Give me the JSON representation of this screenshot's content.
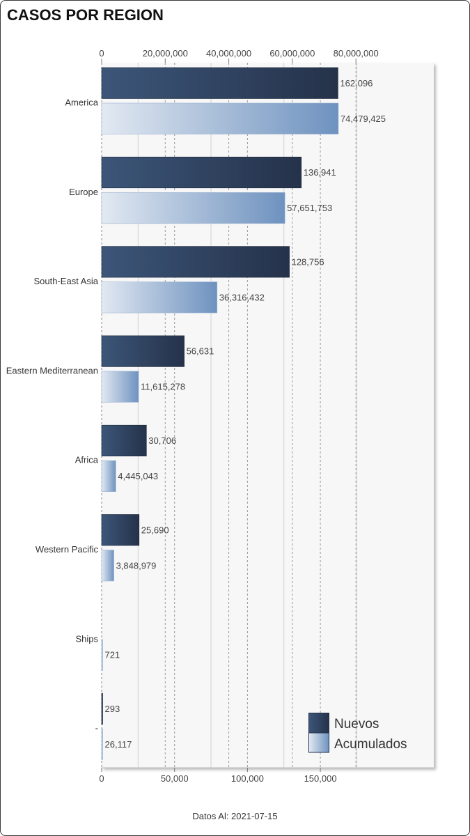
{
  "footer": {
    "text": "Datos Al: 2021-07-15"
  },
  "chart_data": {
    "type": "bar",
    "orientation": "horizontal",
    "title": "CASOS POR REGION",
    "categories": [
      "America",
      "Europe",
      "South-East Asia",
      "Eastern Mediterranean",
      "Africa",
      "Western Pacific",
      "Ships",
      "-"
    ],
    "series": [
      {
        "name": "Nuevos",
        "axis": "bottom",
        "values": [
          162096,
          136941,
          128756,
          56631,
          30706,
          25690,
          null,
          293
        ]
      },
      {
        "name": "Acumulados",
        "axis": "top",
        "values": [
          74479425,
          57651753,
          36316432,
          11615278,
          4445043,
          3848979,
          721,
          26117
        ]
      }
    ],
    "x_top": {
      "range": [
        0,
        104500000
      ],
      "ticks": [
        0,
        20000000,
        40000000,
        60000000,
        80000000
      ],
      "tick_labels": [
        "0",
        "20,000,000",
        "40,000,000",
        "60,000,000",
        "80,000,000"
      ]
    },
    "x_bottom": {
      "range": [
        0,
        227800
      ],
      "ticks": [
        0,
        50000,
        100000,
        150000
      ],
      "tick_labels": [
        "0",
        "50,000",
        "100,000",
        "150,000"
      ],
      "minor_ticks": [
        25000,
        75000,
        125000,
        175000
      ]
    },
    "grid": true,
    "data_labels": true,
    "legend": {
      "position": "bottom-right"
    },
    "colors": {
      "series": [
        {
          "from": "#3c5679",
          "to": "#25324a",
          "edge": "#1c2738"
        },
        {
          "from": "#e2e9f2",
          "to": "#6e92bf",
          "edge": "#9fb5d2"
        }
      ],
      "plot_background": "#f7f7f7",
      "legend_edge": "#23314a"
    }
  }
}
